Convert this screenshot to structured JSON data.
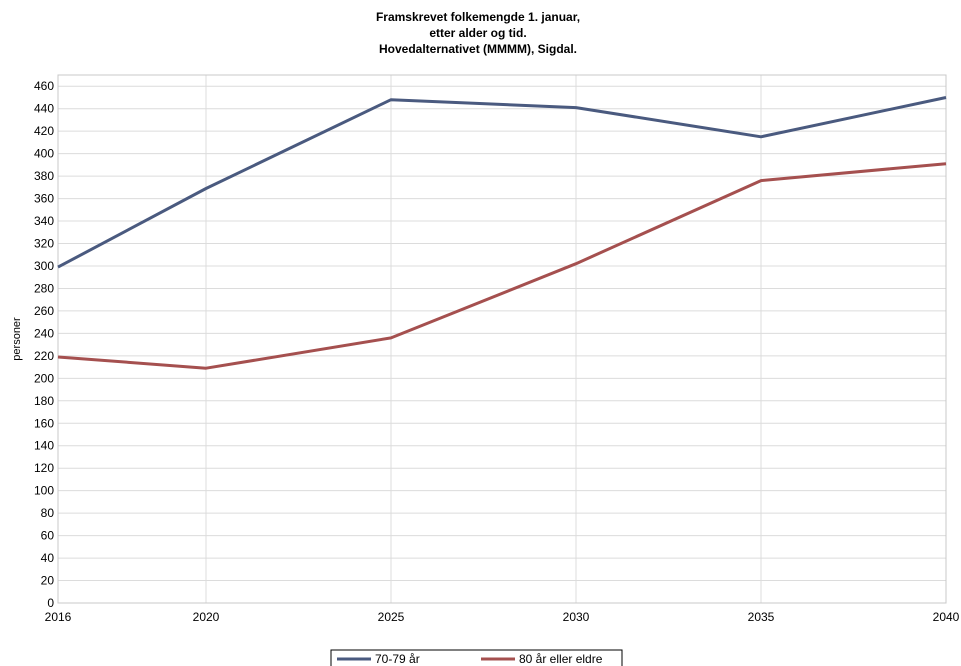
{
  "chart_data": {
    "type": "line",
    "title_lines": [
      "Framskrevet folkemengde 1. januar,",
      "etter alder og tid.",
      "Hovedalternativet (MMMM), Sigdal."
    ],
    "xlabel": "",
    "ylabel": "personer",
    "x": [
      2016,
      2020,
      2025,
      2030,
      2035,
      2040
    ],
    "ylim": [
      0,
      470
    ],
    "yticks": [
      0,
      20,
      40,
      60,
      80,
      100,
      120,
      140,
      160,
      180,
      200,
      220,
      240,
      260,
      280,
      300,
      320,
      340,
      360,
      380,
      400,
      420,
      440,
      460
    ],
    "grid": true,
    "legend_position": "bottom-center",
    "series": [
      {
        "name": "70-79 år",
        "color": "#4a5a7f",
        "values": [
          299,
          369,
          448,
          441,
          415,
          450
        ]
      },
      {
        "name": "80 år eller eldre",
        "color": "#a5504f",
        "values": [
          219,
          209,
          236,
          302,
          376,
          391
        ]
      }
    ]
  }
}
